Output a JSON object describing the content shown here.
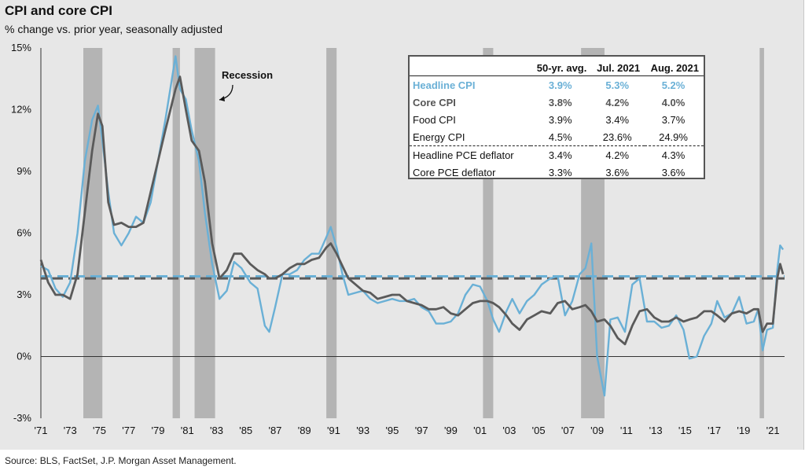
{
  "title": "CPI and core CPI",
  "subtitle": "% change vs. prior year, seasonally adjusted",
  "source": "Source: BLS, FactSet, J.P. Morgan Asset Management.",
  "annotation": "Recession",
  "colors": {
    "headline": "#6ab0d6",
    "core": "#5a5a5a",
    "recession": "#b4b4b4",
    "panel": "#e7e7e7"
  },
  "table": {
    "headers": [
      "",
      "50-yr. avg.",
      "Jul. 2021",
      "Aug. 2021"
    ],
    "rows": [
      {
        "name": "Headline CPI",
        "avg": "3.9%",
        "jul": "5.3%",
        "aug": "5.2%"
      },
      {
        "name": "Core CPI",
        "avg": "3.8%",
        "jul": "4.2%",
        "aug": "4.0%"
      },
      {
        "name": "Food CPI",
        "avg": "3.9%",
        "jul": "3.4%",
        "aug": "3.7%"
      },
      {
        "name": "Energy CPI",
        "avg": "4.5%",
        "jul": "23.6%",
        "aug": "24.9%"
      },
      {
        "name": "Headline PCE deflator",
        "avg": "3.4%",
        "jul": "4.2%",
        "aug": "4.3%"
      },
      {
        "name": "Core PCE deflator",
        "avg": "3.3%",
        "jul": "3.6%",
        "aug": "3.6%"
      }
    ]
  },
  "chart_data": {
    "type": "line",
    "xlim": [
      1971,
      2021.8
    ],
    "ylim": [
      -3,
      15
    ],
    "x_tick_labels": [
      "'71",
      "'73",
      "'75",
      "'77",
      "'79",
      "'81",
      "'83",
      "'85",
      "'87",
      "'89",
      "'91",
      "'93",
      "'95",
      "'97",
      "'99",
      "'01",
      "'03",
      "'05",
      "'07",
      "'09",
      "'11",
      "'13",
      "'15",
      "'17",
      "'19",
      "'21"
    ],
    "y_tick_labels": [
      "-3%",
      "0%",
      "3%",
      "6%",
      "9%",
      "12%",
      "15%"
    ],
    "y_ticks": [
      -3,
      0,
      3,
      6,
      9,
      12,
      15
    ],
    "recessions": [
      [
        1973.9,
        1975.2
      ],
      [
        1980.0,
        1980.5
      ],
      [
        1981.5,
        1982.9
      ],
      [
        1990.5,
        1991.2
      ],
      [
        2001.2,
        2001.9
      ],
      [
        2007.9,
        2009.5
      ],
      [
        2020.1,
        2020.4
      ]
    ],
    "avg_headline": 3.9,
    "avg_core": 3.8,
    "series": [
      {
        "name": "Headline CPI",
        "x": [
          1971.0,
          1971.5,
          1972.0,
          1972.5,
          1973.0,
          1973.5,
          1974.0,
          1974.5,
          1974.9,
          1975.2,
          1975.6,
          1976.0,
          1976.5,
          1977.0,
          1977.5,
          1978.0,
          1978.5,
          1979.0,
          1979.5,
          1980.2,
          1980.5,
          1980.9,
          1981.3,
          1981.8,
          1982.2,
          1982.7,
          1983.2,
          1983.7,
          1984.2,
          1984.7,
          1985.3,
          1985.8,
          1986.3,
          1986.6,
          1987.0,
          1987.5,
          1988.0,
          1988.5,
          1989.0,
          1989.5,
          1990.0,
          1990.5,
          1990.8,
          1991.2,
          1991.6,
          1992.0,
          1992.5,
          1993.0,
          1993.5,
          1994.0,
          1994.5,
          1995.0,
          1995.5,
          1996.0,
          1996.5,
          1997.0,
          1997.5,
          1998.0,
          1998.5,
          1999.0,
          1999.5,
          2000.0,
          2000.5,
          2001.0,
          2001.5,
          2001.9,
          2002.3,
          2002.8,
          2003.2,
          2003.7,
          2004.2,
          2004.7,
          2005.2,
          2005.8,
          2006.3,
          2006.8,
          2007.3,
          2007.8,
          2008.2,
          2008.6,
          2009.0,
          2009.5,
          2009.9,
          2010.4,
          2010.9,
          2011.4,
          2011.9,
          2012.4,
          2012.9,
          2013.4,
          2013.9,
          2014.4,
          2014.9,
          2015.3,
          2015.8,
          2016.3,
          2016.8,
          2017.2,
          2017.7,
          2018.2,
          2018.7,
          2019.2,
          2019.7,
          2020.0,
          2020.3,
          2020.6,
          2021.0,
          2021.3,
          2021.5,
          2021.7
        ],
        "y": [
          4.4,
          4.2,
          3.3,
          2.9,
          3.6,
          6.0,
          9.5,
          11.5,
          12.2,
          10.5,
          8.0,
          6.0,
          5.4,
          6.0,
          6.8,
          6.5,
          7.5,
          9.5,
          11.5,
          14.6,
          13.0,
          12.5,
          11.0,
          9.5,
          7.0,
          4.5,
          2.8,
          3.2,
          4.6,
          4.3,
          3.6,
          3.3,
          1.5,
          1.2,
          2.4,
          4.0,
          4.0,
          4.2,
          4.7,
          5.0,
          5.0,
          5.8,
          6.3,
          5.3,
          4.0,
          3.0,
          3.1,
          3.2,
          2.8,
          2.6,
          2.7,
          2.8,
          2.7,
          2.7,
          2.8,
          2.4,
          2.2,
          1.6,
          1.6,
          1.7,
          2.1,
          3.0,
          3.5,
          3.4,
          2.7,
          1.8,
          1.2,
          2.2,
          2.8,
          2.1,
          2.7,
          3.0,
          3.5,
          3.8,
          3.9,
          2.0,
          2.7,
          4.0,
          4.3,
          5.5,
          0.0,
          -1.9,
          1.8,
          1.9,
          1.2,
          3.5,
          3.8,
          1.7,
          1.7,
          1.4,
          1.5,
          2.0,
          1.3,
          -0.1,
          0.0,
          1.0,
          1.6,
          2.7,
          1.9,
          2.1,
          2.9,
          1.6,
          1.7,
          2.3,
          0.3,
          1.3,
          1.4,
          4.2,
          5.4,
          5.2
        ]
      },
      {
        "name": "Core CPI",
        "x": [
          1971.0,
          1971.5,
          1972.0,
          1972.5,
          1973.0,
          1973.5,
          1974.0,
          1974.5,
          1974.9,
          1975.2,
          1975.6,
          1976.0,
          1976.5,
          1977.0,
          1977.5,
          1978.0,
          1978.5,
          1979.0,
          1979.5,
          1980.2,
          1980.5,
          1980.9,
          1981.3,
          1981.8,
          1982.2,
          1982.7,
          1983.2,
          1983.7,
          1984.2,
          1984.7,
          1985.3,
          1985.8,
          1986.3,
          1986.6,
          1987.0,
          1987.5,
          1988.0,
          1988.5,
          1989.0,
          1989.5,
          1990.0,
          1990.5,
          1990.8,
          1991.2,
          1991.6,
          1992.0,
          1992.5,
          1993.0,
          1993.5,
          1994.0,
          1994.5,
          1995.0,
          1995.5,
          1996.0,
          1996.5,
          1997.0,
          1997.5,
          1998.0,
          1998.5,
          1999.0,
          1999.5,
          2000.0,
          2000.5,
          2001.0,
          2001.5,
          2001.9,
          2002.3,
          2002.8,
          2003.2,
          2003.7,
          2004.2,
          2004.7,
          2005.2,
          2005.8,
          2006.3,
          2006.8,
          2007.3,
          2007.8,
          2008.2,
          2008.6,
          2009.0,
          2009.5,
          2009.9,
          2010.4,
          2010.9,
          2011.4,
          2011.9,
          2012.4,
          2012.9,
          2013.4,
          2013.9,
          2014.4,
          2014.9,
          2015.3,
          2015.8,
          2016.3,
          2016.8,
          2017.2,
          2017.7,
          2018.2,
          2018.7,
          2019.2,
          2019.7,
          2020.0,
          2020.3,
          2020.6,
          2021.0,
          2021.3,
          2021.5,
          2021.7
        ],
        "y": [
          4.7,
          3.6,
          3.0,
          3.0,
          2.8,
          4.0,
          7.0,
          10.0,
          11.8,
          11.2,
          7.5,
          6.4,
          6.5,
          6.3,
          6.3,
          6.5,
          8.0,
          9.5,
          11.0,
          13.0,
          13.6,
          12.0,
          10.5,
          10.0,
          8.5,
          5.5,
          3.8,
          4.2,
          5.0,
          5.0,
          4.5,
          4.2,
          4.0,
          3.8,
          3.8,
          4.0,
          4.3,
          4.5,
          4.5,
          4.7,
          4.8,
          5.3,
          5.5,
          5.0,
          4.4,
          3.8,
          3.5,
          3.2,
          3.1,
          2.8,
          2.9,
          3.0,
          3.0,
          2.7,
          2.6,
          2.5,
          2.3,
          2.3,
          2.4,
          2.1,
          2.0,
          2.3,
          2.6,
          2.7,
          2.7,
          2.6,
          2.4,
          2.0,
          1.6,
          1.3,
          1.8,
          2.0,
          2.2,
          2.1,
          2.6,
          2.7,
          2.3,
          2.4,
          2.5,
          2.2,
          1.7,
          1.8,
          1.5,
          0.9,
          0.6,
          1.5,
          2.2,
          2.3,
          1.9,
          1.7,
          1.7,
          1.9,
          1.7,
          1.8,
          1.9,
          2.2,
          2.2,
          2.0,
          1.7,
          2.1,
          2.2,
          2.1,
          2.3,
          2.3,
          1.2,
          1.6,
          1.6,
          3.8,
          4.5,
          4.0
        ]
      }
    ]
  }
}
